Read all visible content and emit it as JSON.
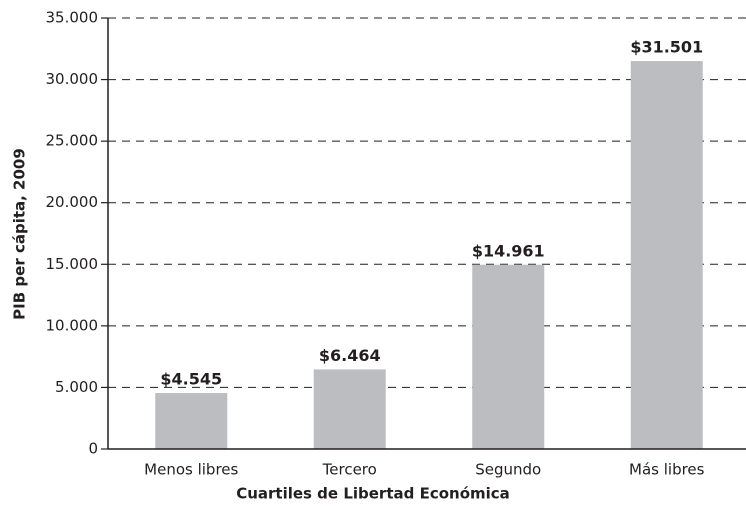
{
  "chart_data": {
    "type": "bar",
    "categories": [
      "Menos libres",
      "Tercero",
      "Segundo",
      "Más libres"
    ],
    "values": [
      4545,
      6464,
      14961,
      31501
    ],
    "value_labels": [
      "$4.545",
      "$6.464",
      "$14.961",
      "$31.501"
    ],
    "color": "#bcbdc0",
    "xlabel": "Cuartiles de Libertad Económica",
    "ylabel": "PIB per cápita, 2009",
    "ylim": [
      0,
      35000
    ],
    "yticks": [
      0,
      {
        "value": 5000,
        "label": "5.000"
      },
      {
        "value": 10000,
        "label": "10.000"
      },
      {
        "value": 15000,
        "label": "15.000"
      },
      {
        "value": 20000,
        "label": "20.000"
      },
      {
        "value": 25000,
        "label": "25.000"
      },
      {
        "value": 30000,
        "label": "30.000"
      },
      {
        "value": 35000,
        "label": "35.000"
      }
    ],
    "grid": true
  }
}
